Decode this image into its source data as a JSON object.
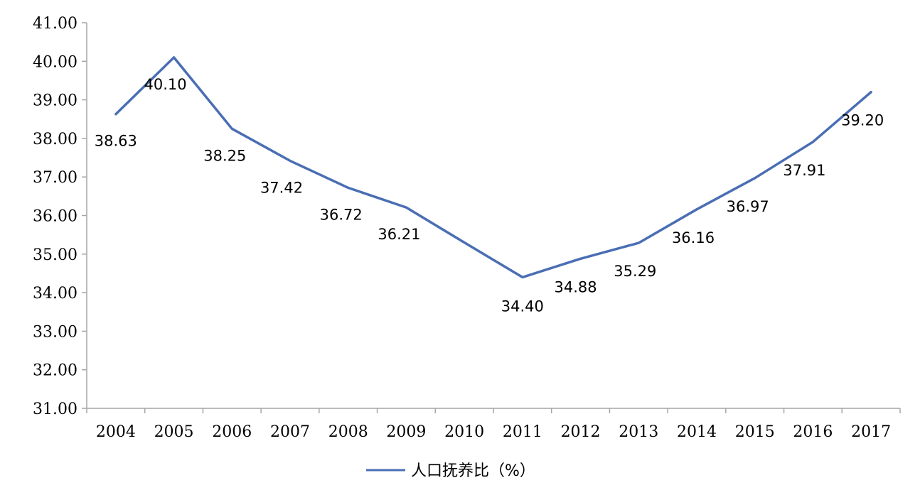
{
  "chart_data": {
    "type": "line",
    "categories": [
      "2004",
      "2005",
      "2006",
      "2007",
      "2008",
      "2009",
      "2010",
      "2011",
      "2012",
      "2013",
      "2014",
      "2015",
      "2016",
      "2017"
    ],
    "series": [
      {
        "name": "人口抚养比（%）",
        "values": [
          38.63,
          40.1,
          38.25,
          37.42,
          36.72,
          36.21,
          35.3,
          34.4,
          34.88,
          35.29,
          36.16,
          36.97,
          37.91,
          39.2
        ],
        "labels": [
          "38.63",
          "40.10",
          "38.25",
          "37.42",
          "36.72",
          "36.21",
          null,
          "34.40",
          "34.88",
          "35.29",
          "36.16",
          "36.97",
          "37.91",
          "39.20"
        ]
      }
    ],
    "ylim": [
      31,
      41
    ],
    "yticks": [
      "31.00",
      "32.00",
      "33.00",
      "34.00",
      "35.00",
      "36.00",
      "37.00",
      "38.00",
      "39.00",
      "40.00",
      "41.00"
    ],
    "grid": false,
    "legend_position": "bottom",
    "line_color": "#4a6eb4"
  }
}
